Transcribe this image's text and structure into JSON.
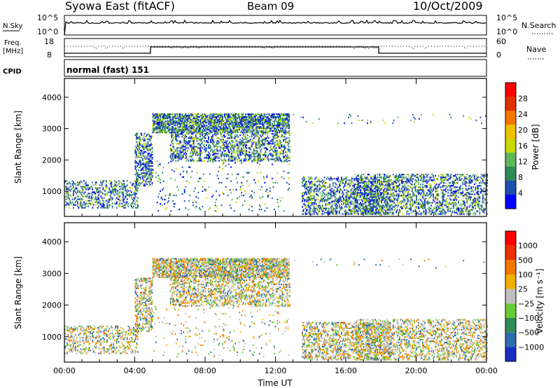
{
  "header": {
    "title": "Syowa East (fitACF)",
    "beam": "Beam 09",
    "date": "10/Oct/2009"
  },
  "panels": {
    "nsky": {
      "label": "N.Sky",
      "tick_top": "10^5",
      "tick_bottom": "10^0",
      "right_tick_top": "10^5",
      "right_tick_bottom": "10^0",
      "right_label": "N.Search"
    },
    "freq": {
      "label": "Freq.",
      "unit": "[MHz]",
      "tick_top": "18",
      "tick_bottom": "8",
      "right_tick_top": "60",
      "right_tick_bottom": "0",
      "right_label": "Nave"
    },
    "cpid": {
      "label": "CPID",
      "value": "normal (fast) 151"
    }
  },
  "chart_data": [
    {
      "type": "heatmap",
      "name": "power",
      "ylabel": "Slant Range [km]",
      "y_ticks": [
        "1000",
        "2000",
        "3000",
        "4000"
      ],
      "ylim": [
        200,
        4600
      ],
      "x_ticks": [
        "00:00",
        "04:00",
        "08:00",
        "12:00",
        "16:00",
        "20:00",
        "00:00"
      ],
      "xlim_hours": [
        0,
        24
      ],
      "colorbar": {
        "label": "Power [dB]",
        "ticks": [
          "4",
          "8",
          "12",
          "16",
          "20",
          "24",
          "28"
        ],
        "colors": [
          "#0000ff",
          "#1f4fb0",
          "#2e8b57",
          "#5cb85c",
          "#c8d800",
          "#f0c000",
          "#f07800",
          "#e03000",
          "#ff0000"
        ]
      }
    },
    {
      "type": "heatmap",
      "name": "velocity",
      "ylabel": "Slant Range [km]",
      "y_ticks": [
        "1000",
        "2000",
        "3000",
        "4000"
      ],
      "ylim": [
        200,
        4600
      ],
      "x_ticks": [
        "00:00",
        "04:00",
        "08:00",
        "12:00",
        "16:00",
        "20:00",
        "00:00"
      ],
      "xlabel": "Time UT",
      "xlim_hours": [
        0,
        24
      ],
      "colorbar": {
        "label": "Velocity [m s⁻¹]",
        "ticks": [
          "1000",
          "500",
          "100",
          "25",
          "−25",
          "−100",
          "−500",
          "−1000"
        ],
        "colors": [
          "#1a2fbf",
          "#2c6db0",
          "#2e8b57",
          "#66cc33",
          "#bfbfbf",
          "#f0b000",
          "#f07800",
          "#e83000",
          "#ff0000"
        ]
      }
    }
  ]
}
